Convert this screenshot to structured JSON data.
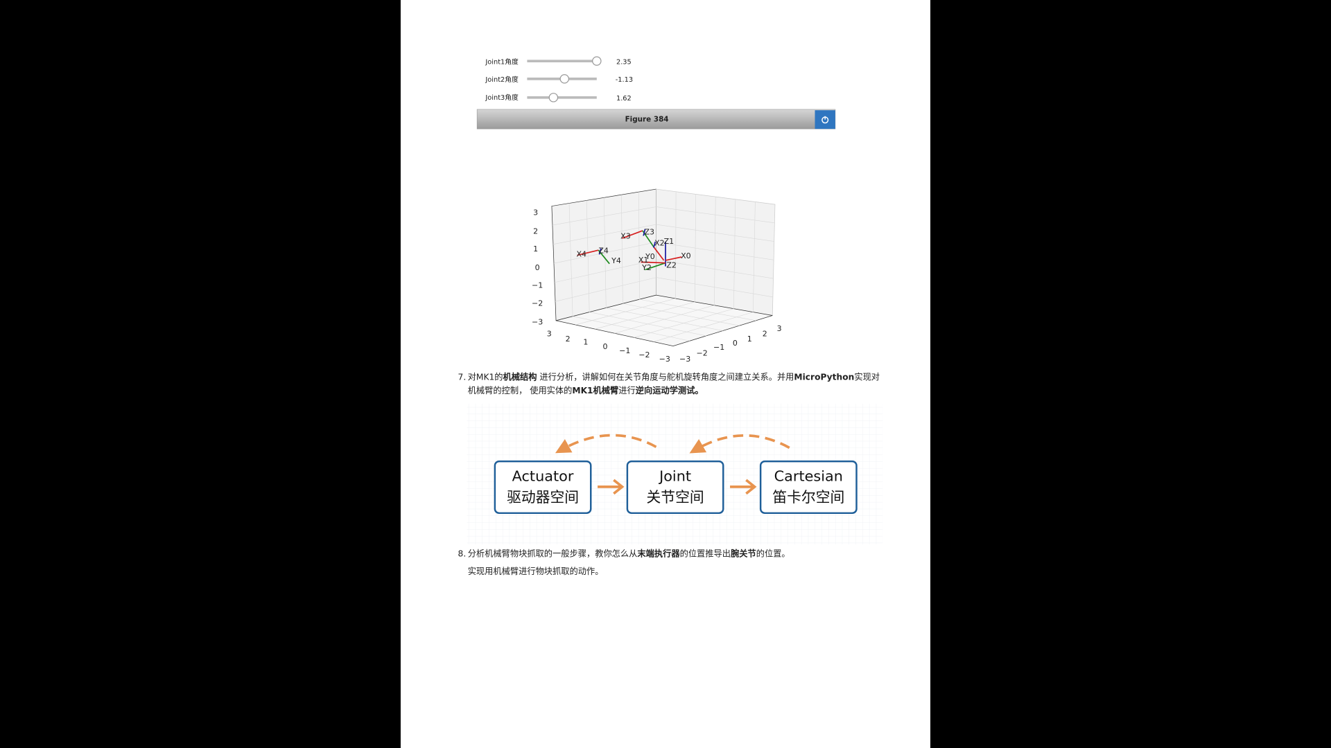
{
  "sliders": [
    {
      "label": "Joint1角度",
      "value": 2.35
    },
    {
      "label": "Joint2角度",
      "value": -1.13
    },
    {
      "label": "Joint3角度",
      "value": 1.62
    }
  ],
  "figure": {
    "title": "Figure 384"
  },
  "plot": {
    "zticks": [
      "3",
      "2",
      "1",
      "0",
      "−1",
      "−2",
      "−3"
    ],
    "xticks": [
      "3",
      "2",
      "1",
      "0",
      "−1",
      "−2",
      "−3"
    ],
    "yticks": [
      "−3",
      "−2",
      "−1",
      "0",
      "1",
      "2",
      "3"
    ],
    "frame_labels": [
      "X4",
      "Z4",
      "Y4",
      "X3",
      "Z3",
      "X2",
      "Z1",
      "Y0",
      "X0",
      "X1",
      "Y2",
      "Z2"
    ]
  },
  "items": [
    {
      "marker": "7.",
      "lines": [
        [
          {
            "text": "对MK1的",
            "bold": false
          },
          {
            "text": "机械结构",
            "bold": true
          },
          {
            "text": " 进行分析，讲解如何在关节角度与舵机旋转角度之间建立关系。并用",
            "bold": false
          },
          {
            "text": "MicroPython",
            "bold": true
          },
          {
            "text": "实现对",
            "bold": false
          }
        ],
        [
          {
            "text": "机械臂的控制， 使用实体的",
            "bold": false
          },
          {
            "text": "MK1机械臂",
            "bold": true
          },
          {
            "text": "进行",
            "bold": false
          },
          {
            "text": "逆向运动学测试。",
            "bold": true
          }
        ]
      ]
    },
    {
      "marker": "8.",
      "lines": [
        [
          {
            "text": "分析机械臂物块抓取的一般步骤，教你怎么从",
            "bold": false
          },
          {
            "text": "末端执行器",
            "bold": true
          },
          {
            "text": "的位置推导出",
            "bold": false
          },
          {
            "text": "腕关节",
            "bold": true
          },
          {
            "text": "的位置。",
            "bold": false
          }
        ],
        [
          {
            "text": "实现用机械臂进行物块抓取的动作。",
            "bold": false
          }
        ]
      ]
    }
  ],
  "diagram": {
    "boxes": [
      {
        "title": "Actuator",
        "subtitle": "驱动器空间"
      },
      {
        "title": "Joint",
        "subtitle": "关节空间"
      },
      {
        "title": "Cartesian",
        "subtitle": "笛卡尔空间"
      }
    ]
  }
}
